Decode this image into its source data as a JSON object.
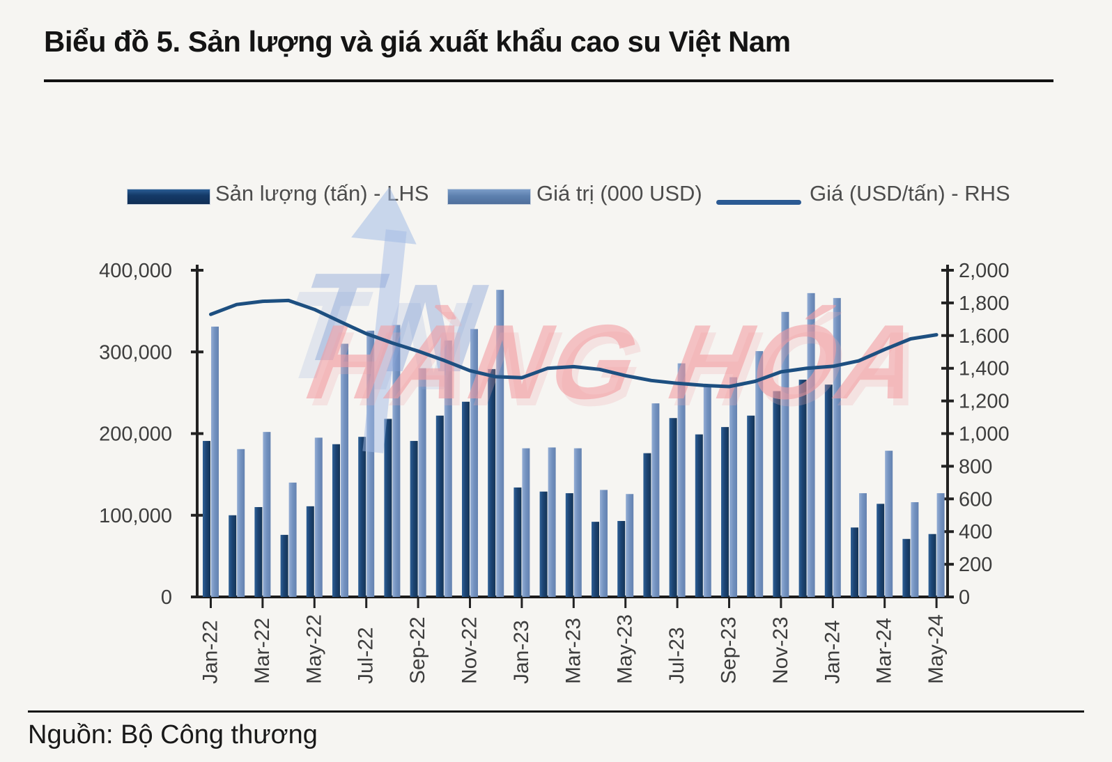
{
  "header": {
    "title": "Biểu đồ 5. Sản lượng và giá xuất khẩu cao su Việt Nam"
  },
  "legend": {
    "items": [
      {
        "label": "Sản lượng (tấn) - LHS",
        "swatch_color": "#143a68",
        "marker": "bar"
      },
      {
        "label": "Giá trị (000 USD)",
        "swatch_color": "#5d80ae",
        "marker": "bar"
      },
      {
        "label": "Giá (USD/tấn) - RHS",
        "swatch_color": "#2b5a93",
        "marker": "line"
      }
    ]
  },
  "watermark": {
    "word1": "TIN",
    "word2": "HÀNG HÓA",
    "blue": "#9db8e2",
    "pink": "#f49ea3"
  },
  "footer": {
    "source": "Nguồn: Bộ Công thương"
  },
  "chart_data": {
    "type": "bar",
    "subtype": "grouped-bars-with-line-combo",
    "grid": false,
    "legend_position": "top",
    "categories": [
      "Jan-22",
      "Feb-22",
      "Mar-22",
      "Apr-22",
      "May-22",
      "Jun-22",
      "Jul-22",
      "Aug-22",
      "Sep-22",
      "Oct-22",
      "Nov-22",
      "Dec-22",
      "Jan-23",
      "Feb-23",
      "Mar-23",
      "Apr-23",
      "May-23",
      "Jun-23",
      "Jul-23",
      "Aug-23",
      "Sep-23",
      "Oct-23",
      "Nov-23",
      "Dec-23",
      "Jan-24",
      "Feb-24",
      "Mar-24",
      "Apr-24",
      "May-24"
    ],
    "series": [
      {
        "name": "Sản lượng (tấn) - LHS",
        "type": "bar",
        "axis": "left",
        "color": "#1c4473",
        "values": [
          191000,
          100000,
          110000,
          76000,
          111000,
          187000,
          196000,
          218000,
          191000,
          222000,
          239000,
          279000,
          134000,
          129000,
          127000,
          92000,
          93000,
          176000,
          219000,
          199000,
          208000,
          222000,
          252000,
          266000,
          260000,
          85000,
          114000,
          71000,
          77000
        ]
      },
      {
        "name": "Giá trị (000 USD)",
        "type": "bar",
        "axis": "left",
        "color": "#7291bf",
        "values": [
          331000,
          181000,
          202000,
          140000,
          195000,
          310000,
          326000,
          333000,
          280000,
          314000,
          328000,
          376000,
          182000,
          183000,
          182000,
          131000,
          126000,
          237000,
          286000,
          260000,
          269000,
          301000,
          349000,
          372000,
          366000,
          127000,
          179000,
          116000,
          127000
        ]
      },
      {
        "name": "Giá (USD/tấn) - RHS",
        "type": "line",
        "axis": "right",
        "color": "#1d4f80",
        "values": [
          1730,
          1790,
          1810,
          1815,
          1760,
          1685,
          1612,
          1555,
          1505,
          1448,
          1385,
          1348,
          1342,
          1400,
          1410,
          1393,
          1355,
          1325,
          1308,
          1295,
          1288,
          1320,
          1378,
          1400,
          1412,
          1445,
          1515,
          1580,
          1605
        ]
      }
    ],
    "left_axis": {
      "min": 0,
      "max": 400000,
      "step": 100000,
      "tick_labels": [
        "0",
        "100,000",
        "200,000",
        "300,000",
        "400,000"
      ]
    },
    "right_axis": {
      "min": 0,
      "max": 2000,
      "step": 200,
      "tick_labels": [
        "0",
        "200",
        "400",
        "600",
        "800",
        "1,000",
        "1,200",
        "1,400",
        "1,600",
        "1,800",
        "2,000"
      ]
    },
    "x_axis": {
      "label_every": 2,
      "visible_labels": [
        "Jan-22",
        "Mar-22",
        "May-22",
        "Jul-22",
        "Sep-22",
        "Nov-22",
        "Jan-23",
        "Mar-23",
        "May-23",
        "Jul-23",
        "Sep-23",
        "Nov-23",
        "Jan-24",
        "Mar-24",
        "May-24"
      ]
    }
  }
}
